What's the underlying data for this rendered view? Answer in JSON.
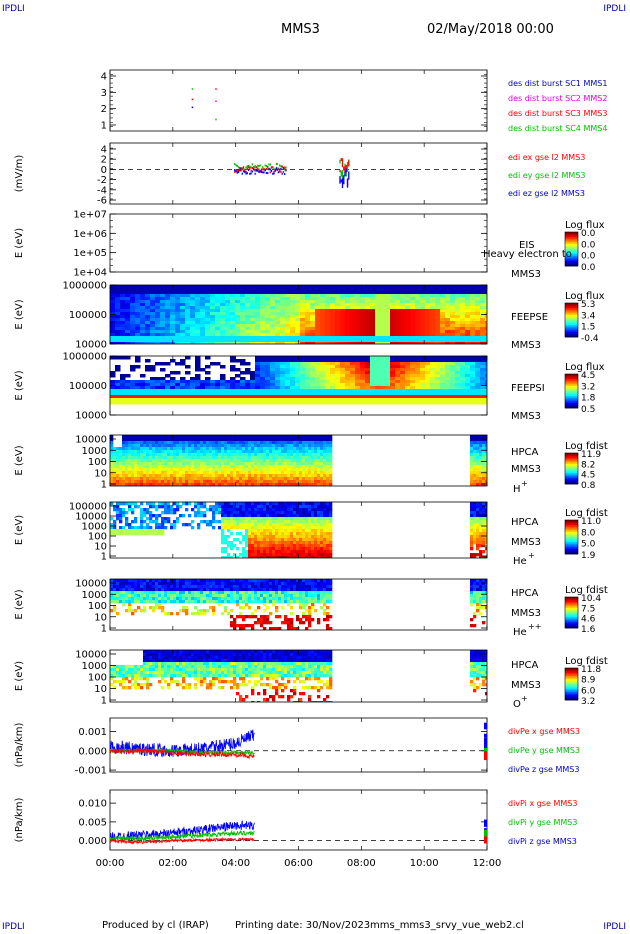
{
  "header": {
    "corner_label": "IPDLI",
    "spacecraft": "MMS3",
    "date_time": "02/May/2018 00:00"
  },
  "footer": {
    "produced_by": "Produced by cl (IRAP)",
    "printing_date": "Printing date: 30/Nov/2023",
    "filename": "mms_mms3_srvy_vue_web2.cl"
  },
  "colors": {
    "red": "#ff0000",
    "green": "#00c000",
    "blue": "#0000ff",
    "magenta": "#e000e0",
    "dashed_line": "#000000"
  },
  "x_axis": {
    "ticks": [
      "00:00",
      "02:00",
      "04:00",
      "06:00",
      "08:00",
      "10:00",
      "12:00"
    ],
    "range_hours": [
      0,
      12
    ]
  },
  "panels": [
    {
      "id": "burst",
      "ylabel": "",
      "yticks": [
        "4",
        "3",
        "2",
        "1"
      ],
      "legend": [
        {
          "text": "des dist burst SC1 MMS1",
          "color": "#0000c0"
        },
        {
          "text": "des dist burst SC2 MMS2",
          "color": "#e000e0"
        },
        {
          "text": "des dist burst SC3 MMS3",
          "color": "#ff0000"
        },
        {
          "text": "des dist burst SC4 MMS4",
          "color": "#00c000"
        }
      ]
    },
    {
      "id": "edi",
      "ylabel": "(mV/m)",
      "yticks": [
        "4",
        "2",
        "0",
        "-2",
        "-4",
        "-6"
      ],
      "legend": [
        {
          "text": "edi ex gse l2 MMS3",
          "color": "#ff0000"
        },
        {
          "text": "edi ey gse l2 MMS3",
          "color": "#00c000"
        },
        {
          "text": "edi ez gse l2 MMS3",
          "color": "#0000c0"
        }
      ]
    },
    {
      "id": "eis",
      "ylabel": "E (eV)",
      "yticks": [
        "1e+07",
        "1e+06",
        "1e+05",
        "1e+04"
      ],
      "instrument": "EIS",
      "sc": "MMS3",
      "extra": "Heavy electron to",
      "colorbar_title": "Log flux",
      "colorbar_ticks": [
        "0.0",
        "0.0",
        "0.0",
        "0.0"
      ]
    },
    {
      "id": "feepse",
      "ylabel": "E (eV)",
      "yticks": [
        "1000000",
        "100000",
        "10000"
      ],
      "instrument": "FEEPSE",
      "sc": "MMS3",
      "colorbar_title": "Log flux",
      "colorbar_ticks": [
        "5.3",
        "3.4",
        "1.5",
        "-0.4"
      ]
    },
    {
      "id": "feepsi",
      "ylabel": "E (eV)",
      "yticks": [
        "1000000",
        "100000",
        "10000"
      ],
      "instrument": "FEEPSI",
      "sc": "MMS3",
      "colorbar_title": "Log flux",
      "colorbar_ticks": [
        "4.5",
        "3.2",
        "1.8",
        "0.5"
      ]
    },
    {
      "id": "hpca_h",
      "ylabel": "E (eV)",
      "yticks": [
        "10000",
        "1000",
        "100",
        "10",
        "1"
      ],
      "instrument": "HPCA",
      "sc": "MMS3",
      "species": "H",
      "charge": "+",
      "colorbar_title": "Log fdist",
      "colorbar_ticks": [
        "11.9",
        "8.2",
        "4.5",
        "0.8"
      ]
    },
    {
      "id": "hpca_he",
      "ylabel": "E (eV)",
      "yticks": [
        "100000",
        "10000",
        "1000",
        "100",
        "10",
        "1"
      ],
      "instrument": "HPCA",
      "sc": "MMS3",
      "species": "He",
      "charge": "+",
      "colorbar_title": "Log fdist",
      "colorbar_ticks": [
        "11.0",
        "8.0",
        "5.0",
        "1.9"
      ]
    },
    {
      "id": "hpca_hepp",
      "ylabel": "E (eV)",
      "yticks": [
        "10000",
        "1000",
        "100",
        "10",
        "1"
      ],
      "instrument": "HPCA",
      "sc": "MMS3",
      "species": "He",
      "charge": "++",
      "colorbar_title": "Log fdist",
      "colorbar_ticks": [
        "10.4",
        "7.5",
        "4.6",
        "1.6"
      ]
    },
    {
      "id": "hpca_o",
      "ylabel": "E (eV)",
      "yticks": [
        "10000",
        "1000",
        "100",
        "10",
        "1"
      ],
      "instrument": "HPCA",
      "sc": "MMS3",
      "species": "O",
      "charge": "+",
      "colorbar_title": "Log fdist",
      "colorbar_ticks": [
        "11.8",
        "8.9",
        "6.0",
        "3.2"
      ]
    },
    {
      "id": "divpe",
      "ylabel": "(nPa/km)",
      "yticks": [
        "0.001",
        "0.000",
        "-0.001"
      ],
      "legend": [
        {
          "text": "divPe x gse MMS3",
          "color": "#ff0000"
        },
        {
          "text": "divPe y gse MMS3",
          "color": "#00c000"
        },
        {
          "text": "divPe z gse MMS3",
          "color": "#0000c0"
        }
      ]
    },
    {
      "id": "divpi",
      "ylabel": "(nPa/km)",
      "yticks": [
        "0.010",
        "0.005",
        "0.000"
      ],
      "legend": [
        {
          "text": "divPi x gse MMS3",
          "color": "#ff0000"
        },
        {
          "text": "divPi y gse MMS3",
          "color": "#00c000"
        },
        {
          "text": "divPi z gse MMS3",
          "color": "#0000c0"
        }
      ]
    }
  ],
  "chart_data": {
    "type": "line",
    "title": "MMS3 02/May/2018 00:00",
    "xlabel": "",
    "x_range_hours": [
      0,
      12
    ],
    "series": [
      {
        "name": "divPe x gse MMS3",
        "panel": "divpe",
        "x": [
          0,
          1,
          2,
          3,
          4,
          4.6
        ],
        "values": [
          0.0,
          0.0,
          -0.0001,
          -0.0002,
          -0.0002,
          -0.0003
        ]
      },
      {
        "name": "divPe y gse MMS3",
        "panel": "divpe",
        "x": [
          0,
          1,
          2,
          3,
          4,
          4.6
        ],
        "values": [
          0.0,
          0.0,
          0.0,
          -0.0001,
          -0.0001,
          -0.0001
        ]
      },
      {
        "name": "divPe z gse MMS3",
        "panel": "divpe",
        "x": [
          0,
          1,
          2,
          3,
          4,
          4.6
        ],
        "values": [
          0.0002,
          0.0001,
          0.0,
          0.0001,
          0.0004,
          0.0008
        ]
      },
      {
        "name": "divPi x gse MMS3",
        "panel": "divpi",
        "x": [
          0,
          1,
          2,
          3,
          4,
          4.6
        ],
        "values": [
          0.0,
          -0.0005,
          0.0,
          0.0002,
          0.0003,
          0.0003
        ]
      },
      {
        "name": "divPi y gse MMS3",
        "panel": "divpi",
        "x": [
          0,
          1,
          2,
          3,
          4,
          4.6
        ],
        "values": [
          0.0005,
          0.0005,
          0.001,
          0.0015,
          0.002,
          0.002
        ]
      },
      {
        "name": "divPi z gse MMS3",
        "panel": "divpi",
        "x": [
          0,
          1,
          2,
          3,
          4,
          4.6
        ],
        "values": [
          0.001,
          0.0015,
          0.002,
          0.003,
          0.004,
          0.004
        ]
      }
    ]
  }
}
